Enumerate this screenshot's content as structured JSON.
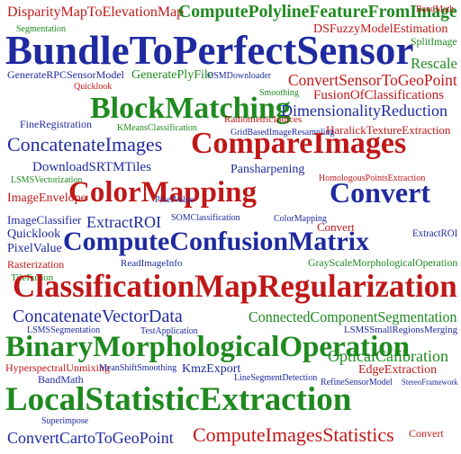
{
  "colors": {
    "blue": "#1f2aa0",
    "red": "#c01818",
    "green": "#1f8a1f",
    "gray": "#888888"
  },
  "words": [
    {
      "text": "DisparityMapToElevationMap",
      "color": "red"
    },
    {
      "text": "ComputePolylineFeatureFromImage",
      "color": "green"
    },
    {
      "text": "BandMath",
      "color": "red"
    },
    {
      "text": "Segmentation",
      "color": "green"
    },
    {
      "text": "DSFuzzyModelEstimation",
      "color": "red"
    },
    {
      "text": "SplitImage",
      "color": "green"
    },
    {
      "text": "BundleToPerfectSensor",
      "color": "blue"
    },
    {
      "text": "Rescale",
      "color": "green"
    },
    {
      "text": "GenerateRPCSensorModel",
      "color": "blue"
    },
    {
      "text": "GeneratePlyFile",
      "color": "green"
    },
    {
      "text": "OSMDownloader",
      "color": "blue"
    },
    {
      "text": "ConvertSensorToGeoPoint",
      "color": "red"
    },
    {
      "text": "Quicklook",
      "color": "red"
    },
    {
      "text": "Smoothing",
      "color": "green"
    },
    {
      "text": "FusionOfClassifications",
      "color": "red"
    },
    {
      "text": "BlockMatching",
      "color": "green"
    },
    {
      "text": "DimensionalityReduction",
      "color": "blue"
    },
    {
      "text": "FineRegistration",
      "color": "blue"
    },
    {
      "text": "RadiometricIndices",
      "color": "red"
    },
    {
      "text": "HaralickTextureExtraction",
      "color": "red"
    },
    {
      "text": "KMeansClassification",
      "color": "green"
    },
    {
      "text": "GridBasedImageResampling",
      "color": "blue"
    },
    {
      "text": "ConcatenateImages",
      "color": "blue"
    },
    {
      "text": "CompareImages",
      "color": "red"
    },
    {
      "text": "DownloadSRTMTiles",
      "color": "blue"
    },
    {
      "text": "Pansharpening",
      "color": "blue"
    },
    {
      "text": "HomologousPointsExtraction",
      "color": "red"
    },
    {
      "text": "LSMSVectorization",
      "color": "green"
    },
    {
      "text": "ColorMapping",
      "color": "red"
    },
    {
      "text": "Convert",
      "color": "blue"
    },
    {
      "text": "ImageEnvelope",
      "color": "red"
    },
    {
      "text": "PixelValue",
      "color": "blue"
    },
    {
      "text": "ImageClassifier",
      "color": "blue"
    },
    {
      "text": "Quicklook",
      "color": "blue"
    },
    {
      "text": "ExtractROI",
      "color": "blue"
    },
    {
      "text": "SOMClassification",
      "color": "blue"
    },
    {
      "text": "ColorMapping",
      "color": "blue"
    },
    {
      "text": "Convert",
      "color": "red"
    },
    {
      "text": "ExtractROI",
      "color": "blue"
    },
    {
      "text": "PixelValue",
      "color": "blue"
    },
    {
      "text": "ComputeConfusionMatrix",
      "color": "blue"
    },
    {
      "text": "Rasterization",
      "color": "red"
    },
    {
      "text": "ReadImageInfo",
      "color": "blue"
    },
    {
      "text": "GrayScaleMorphologicalOperation",
      "color": "green"
    },
    {
      "text": "TileFusion",
      "color": "green"
    },
    {
      "text": "ClassificationMapRegularization",
      "color": "red"
    },
    {
      "text": "ConcatenateVectorData",
      "color": "blue"
    },
    {
      "text": "ConnectedComponentSegmentation",
      "color": "green"
    },
    {
      "text": "LSMSSegmentation",
      "color": "blue"
    },
    {
      "text": "TestApplication",
      "color": "blue"
    },
    {
      "text": "LSMSSmallRegionsMerging",
      "color": "blue"
    },
    {
      "text": "BinaryMorphologicalOperation",
      "color": "green"
    },
    {
      "text": "HyperspectralUnmixing",
      "color": "red"
    },
    {
      "text": "KmzExport",
      "color": "blue"
    },
    {
      "text": "OpticalCalibration",
      "color": "green"
    },
    {
      "text": "MeanShiftSmoothing",
      "color": "blue"
    },
    {
      "text": "EdgeExtraction",
      "color": "red"
    },
    {
      "text": "BandMath",
      "color": "blue"
    },
    {
      "text": "LineSegmentDetection",
      "color": "blue"
    },
    {
      "text": "RefineSensorModel",
      "color": "blue"
    },
    {
      "text": "StereoFramework",
      "color": "blue"
    },
    {
      "text": "LocalStatisticExtraction",
      "color": "green"
    },
    {
      "text": "Superimpose",
      "color": "blue"
    },
    {
      "text": "ConvertCartoToGeoPoint",
      "color": "blue"
    },
    {
      "text": "ComputeImagesStatistics",
      "color": "red"
    },
    {
      "text": "Convert",
      "color": "red"
    }
  ]
}
